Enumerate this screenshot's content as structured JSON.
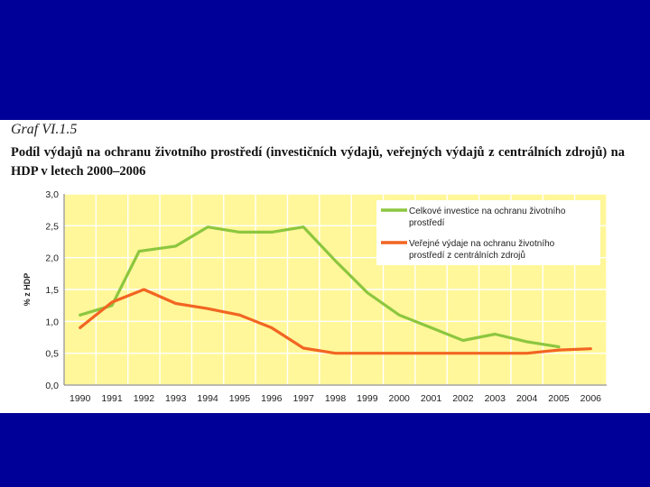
{
  "slide": {
    "background_color": "#000099",
    "panel_color": "#ffffff"
  },
  "header": {
    "graph_label": "Graf VI.1.5",
    "title": "Podíl výdajů na ochranu životního prostředí (investičních výdajů, veřejných výdajů z centrálních zdrojů) na HDP v letech 2000–2006"
  },
  "chart_data": {
    "type": "line",
    "title": "Podíl výdajů na ochranu životního prostředí (investičních výdajů, veřejných výdajů z centrálních zdrojů) na HDP v letech 2000–2006",
    "xlabel": "",
    "ylabel": "% z HDP",
    "categories": [
      "1990",
      "1991",
      "1992",
      "1993",
      "1994",
      "1995",
      "1996",
      "1997",
      "1998",
      "1999",
      "2000",
      "2001",
      "2002",
      "2003",
      "2004",
      "2005",
      "2006"
    ],
    "yticks": [
      "0,0",
      "0,5",
      "1,0",
      "1,5",
      "2,0",
      "2,5",
      "3,0"
    ],
    "ylim": [
      0,
      3
    ],
    "grid": true,
    "plot_background": "#fff799",
    "legend_position": "top-right",
    "series": [
      {
        "name": "Celkové investice na ochranu životního prostředí",
        "legend_lines": [
          "Celkové investice na ochranu životního",
          "prostředí"
        ],
        "color": "#8cc63f",
        "x": [
          1990,
          1991,
          1991.85,
          1993,
          1994,
          1995,
          1996,
          1997,
          1998,
          1999,
          2000,
          2001,
          2002,
          2003,
          2004,
          2005
        ],
        "values": [
          1.1,
          1.25,
          2.1,
          2.18,
          2.48,
          2.4,
          2.4,
          2.48,
          1.95,
          1.45,
          1.1,
          0.9,
          0.7,
          0.8,
          0.68,
          0.6
        ]
      },
      {
        "name": "Veřejné výdaje na ochranu životního prostředí z centrálních zdrojů",
        "legend_lines": [
          "Veřejné výdaje na ochranu životního",
          "prostředí z centrálních zdrojů"
        ],
        "color": "#f26522",
        "x": [
          1990,
          1991,
          1992,
          1993,
          1994,
          1995,
          1996,
          1997,
          1998,
          1999,
          2000,
          2001,
          2002,
          2003,
          2004,
          2005,
          2006
        ],
        "values": [
          0.9,
          1.3,
          1.5,
          1.28,
          1.2,
          1.1,
          0.9,
          0.58,
          0.5,
          0.5,
          0.5,
          0.5,
          0.5,
          0.5,
          0.5,
          0.55,
          0.57
        ]
      }
    ]
  }
}
